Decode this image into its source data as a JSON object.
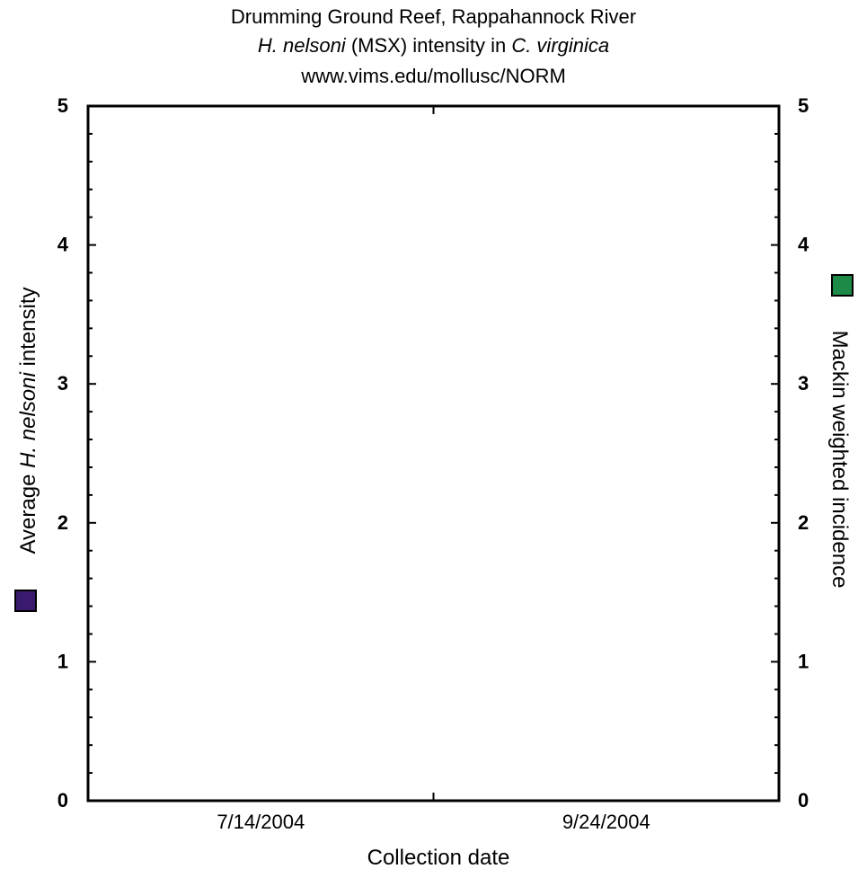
{
  "chart_data": {
    "type": "scatter",
    "title": {
      "line1": "Drumming Ground Reef,  Rappahannock River",
      "line2_italic_a": "H. nelsoni",
      "line2_plain": " (MSX) intensity in ",
      "line2_italic_b": "C. virginica",
      "line3": "www.vims.edu/mollusc/NORM"
    },
    "xlabel": "Collection date",
    "x_tick_labels": [
      "7/14/2004",
      "9/24/2004"
    ],
    "ylabel_left_pre": "Average ",
    "ylabel_left_italic": "H. nelsoni",
    "ylabel_left_post": " intensity",
    "ylabel_right": "Mackin weighted incidence",
    "ylim_left": [
      0,
      5
    ],
    "ylim_right": [
      0,
      5
    ],
    "y_ticks": [
      "0",
      "1",
      "2",
      "3",
      "4",
      "5"
    ],
    "series": [
      {
        "name": "Average H. nelsoni intensity",
        "color": "#3a1a6e",
        "axis": "left",
        "values": []
      },
      {
        "name": "Mackin weighted incidence",
        "color": "#1e8a48",
        "axis": "right",
        "values": []
      }
    ],
    "grid": false,
    "legend": "axis-side squares"
  }
}
